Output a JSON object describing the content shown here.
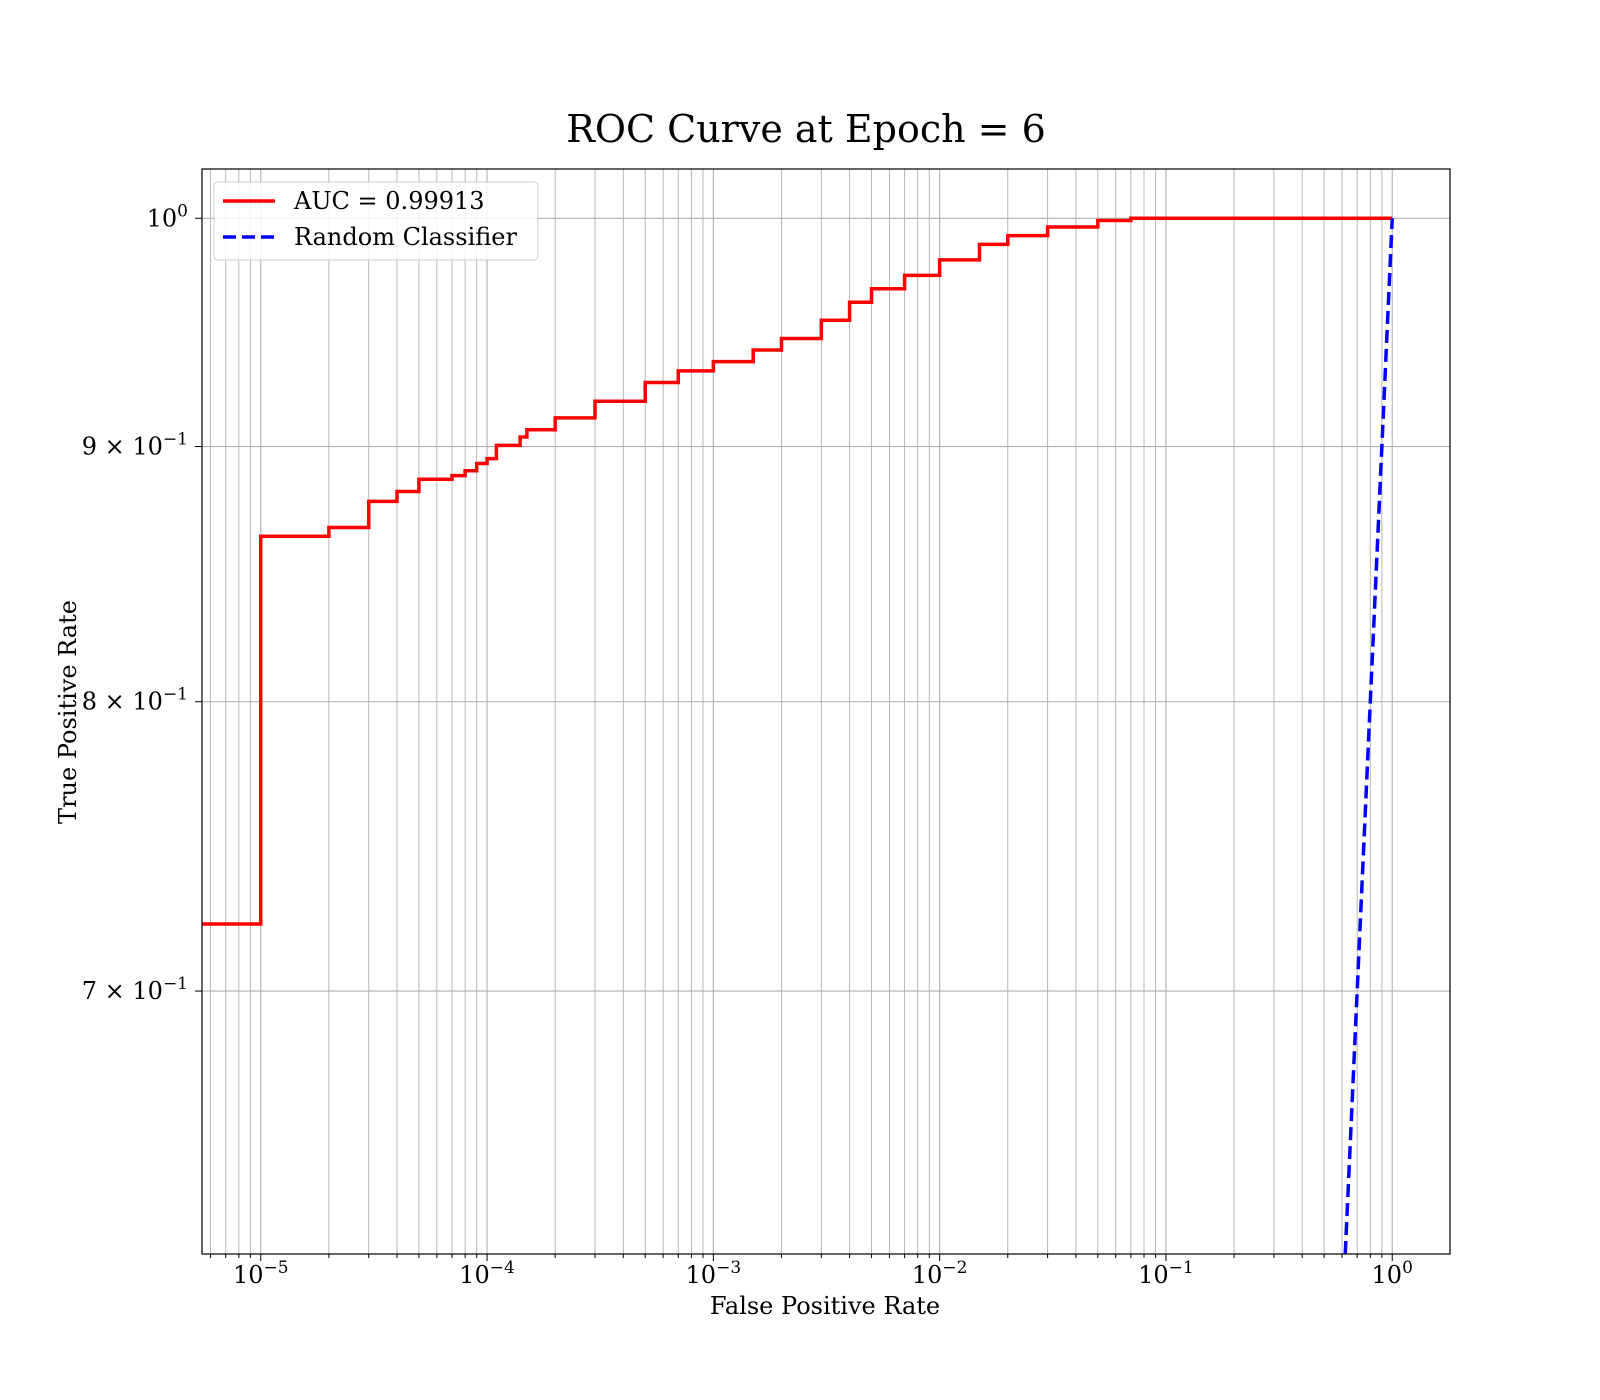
{
  "chart_data": {
    "type": "line",
    "title": "ROC Curve at Epoch = 6",
    "xlabel": "False Positive Rate",
    "ylabel": "True Positive Rate",
    "xscale": "log",
    "yscale": "log",
    "xlim": [
      5.5e-06,
      1.8
    ],
    "ylim": [
      0.62,
      1.023
    ],
    "grid": "both (major and minor)",
    "legend_position": "upper-left",
    "x_ticks": [
      {
        "value": 1e-05,
        "mantissa": "",
        "base": "10",
        "exp": "−5"
      },
      {
        "value": 0.0001,
        "mantissa": "",
        "base": "10",
        "exp": "−4"
      },
      {
        "value": 0.001,
        "mantissa": "",
        "base": "10",
        "exp": "−3"
      },
      {
        "value": 0.01,
        "mantissa": "",
        "base": "10",
        "exp": "−2"
      },
      {
        "value": 0.1,
        "mantissa": "",
        "base": "10",
        "exp": "−1"
      },
      {
        "value": 1,
        "mantissa": "",
        "base": "10",
        "exp": "0"
      }
    ],
    "y_ticks": [
      {
        "value": 1.0,
        "mantissa": "",
        "base": "10",
        "exp": "0"
      },
      {
        "value": 0.9,
        "mantissa": "9 × ",
        "base": "10",
        "exp": "−1"
      },
      {
        "value": 0.8,
        "mantissa": "8 × ",
        "base": "10",
        "exp": "−1"
      },
      {
        "value": 0.7,
        "mantissa": "7 × ",
        "base": "10",
        "exp": "−1"
      }
    ],
    "series": [
      {
        "name": "AUC = 0.99913",
        "color": "#ff0000",
        "style": "solid",
        "step": true,
        "x": [
          5.5e-06,
          1e-05,
          2e-05,
          3e-05,
          4e-05,
          5e-05,
          7e-05,
          8e-05,
          9e-05,
          0.0001,
          0.00011,
          0.00014,
          0.00015,
          0.0002,
          0.0003,
          0.0005,
          0.0007,
          0.001,
          0.0015,
          0.002,
          0.003,
          0.004,
          0.005,
          0.007,
          0.01,
          0.015,
          0.02,
          0.03,
          0.05,
          0.07,
          0.1,
          0.2,
          0.5,
          1.0
        ],
        "y": [
          0.722,
          0.8635,
          0.867,
          0.8775,
          0.8815,
          0.8865,
          0.888,
          0.89,
          0.893,
          0.895,
          0.9005,
          0.904,
          0.907,
          0.912,
          0.919,
          0.927,
          0.932,
          0.936,
          0.941,
          0.946,
          0.954,
          0.962,
          0.968,
          0.974,
          0.981,
          0.988,
          0.992,
          0.996,
          0.999,
          1.0,
          1.0,
          1.0,
          1.0,
          1.0
        ]
      },
      {
        "name": "Random Classifier",
        "color": "#0000ff",
        "style": "dashed",
        "step": false,
        "x": [
          0.62,
          1.0
        ],
        "y": [
          0.62,
          1.0
        ]
      }
    ]
  }
}
